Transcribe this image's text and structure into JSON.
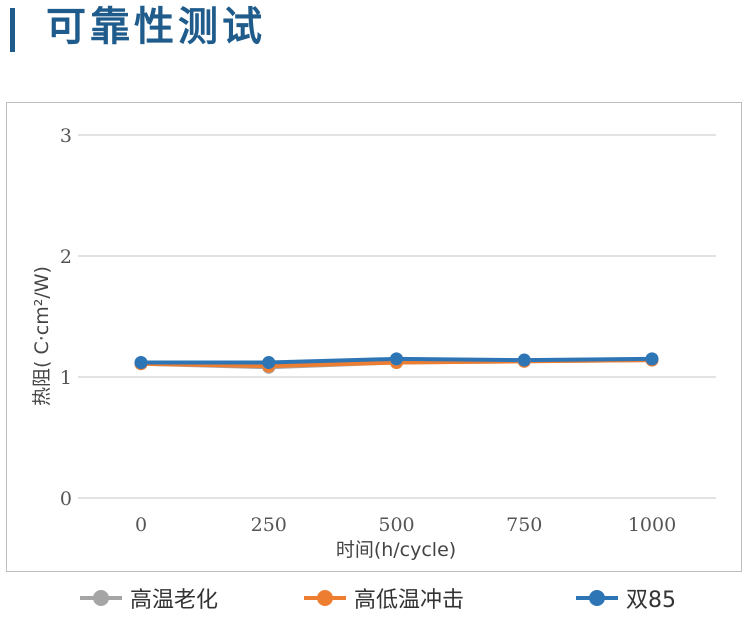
{
  "page": {
    "title": "可靠性测试"
  },
  "chart_data": {
    "type": "line",
    "xlabel": "时间(h/cycle)",
    "ylabel": "热阻(  C·cm²/W)",
    "categories": [
      "0",
      "250",
      "500",
      "750",
      "1000"
    ],
    "y_ticks": [
      "0",
      "1",
      "2",
      "3"
    ],
    "ylim": [
      0,
      3
    ],
    "grid": true,
    "legend_position": "bottom",
    "series": [
      {
        "name": "高温老化",
        "color": "#a5a5a5",
        "values": [
          1.11,
          1.08,
          1.12,
          1.13,
          1.14
        ]
      },
      {
        "name": "高低温冲击",
        "color": "#ed7d31",
        "values": [
          1.11,
          1.09,
          1.12,
          1.13,
          1.14
        ]
      },
      {
        "name": "双85",
        "color": "#2e75b6",
        "values": [
          1.12,
          1.12,
          1.15,
          1.14,
          1.15
        ]
      }
    ]
  }
}
